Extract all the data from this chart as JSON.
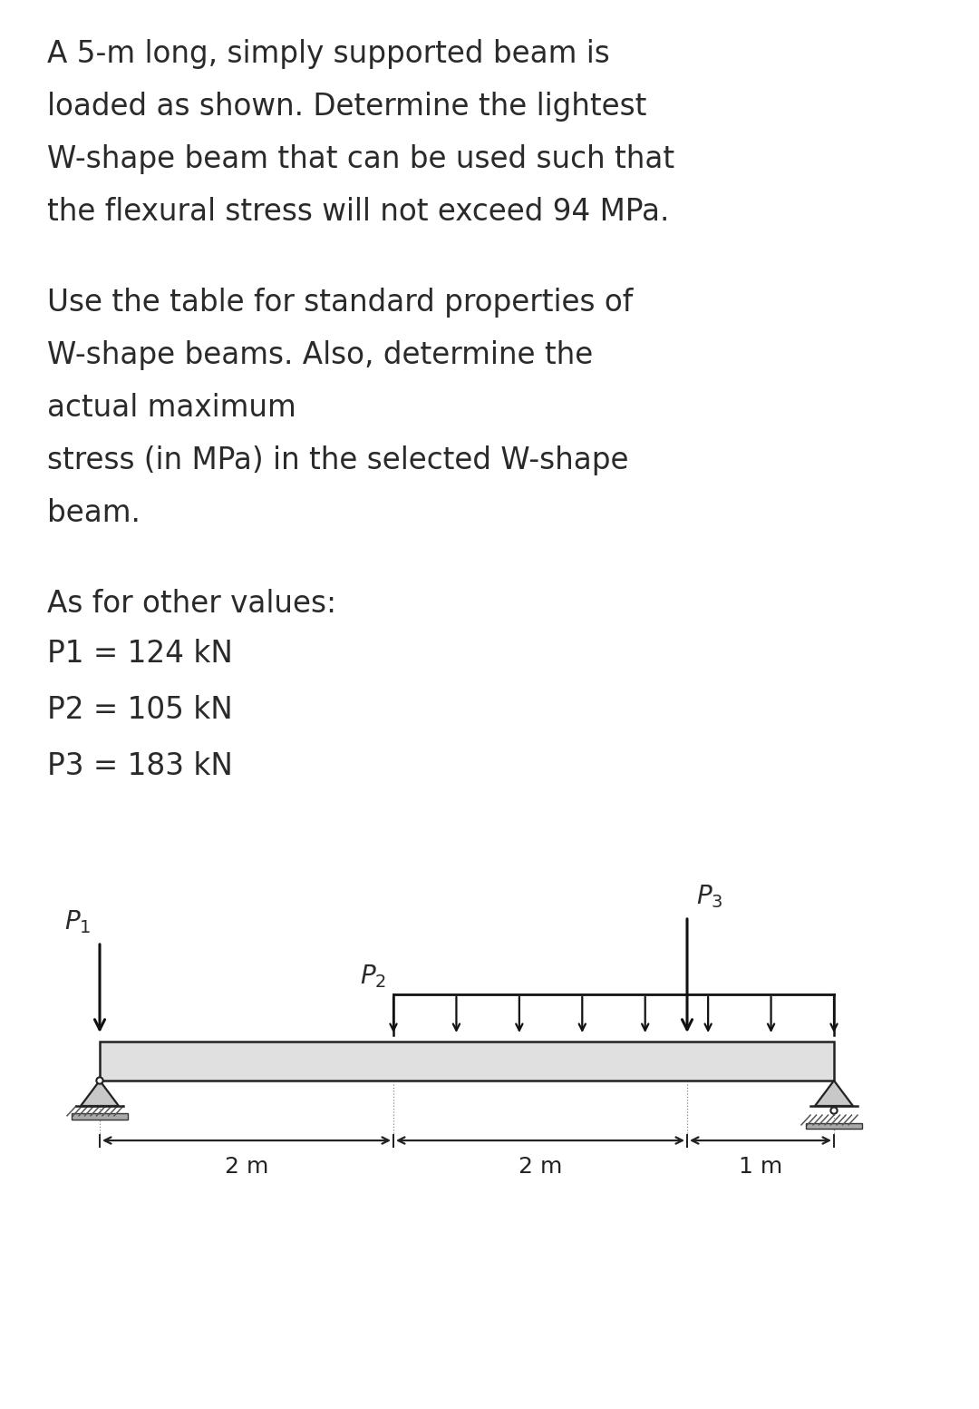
{
  "background_color": "#ffffff",
  "text_color": "#2a2a2a",
  "fig_width": 10.8,
  "fig_height": 15.53,
  "paragraph1_lines": [
    "A 5-m long, simply supported beam is",
    "loaded as shown. Determine the lightest",
    "W-shape beam that can be used such that",
    "the flexural stress will not exceed 94 MPa."
  ],
  "paragraph2_lines": [
    "Use the table for standard properties of",
    "W-shape beams. Also, determine the",
    "actual maximum",
    "stress (in MPa) in the selected W-shape",
    "beam."
  ],
  "para3_line": "As for other values:",
  "p1_line": "P1 = 124 kN",
  "p2_line": "P2 = 105 kN",
  "p3_line": "P3 = 183 kN",
  "font_size_para": 23.5,
  "beam_color": "#e0e0e0",
  "beam_outline": "#222222",
  "arrow_color": "#111111",
  "dim_color": "#222222",
  "dist_load_color": "#111111",
  "support_fill": "#c8c8c8",
  "ground_fill": "#aaaaaa"
}
